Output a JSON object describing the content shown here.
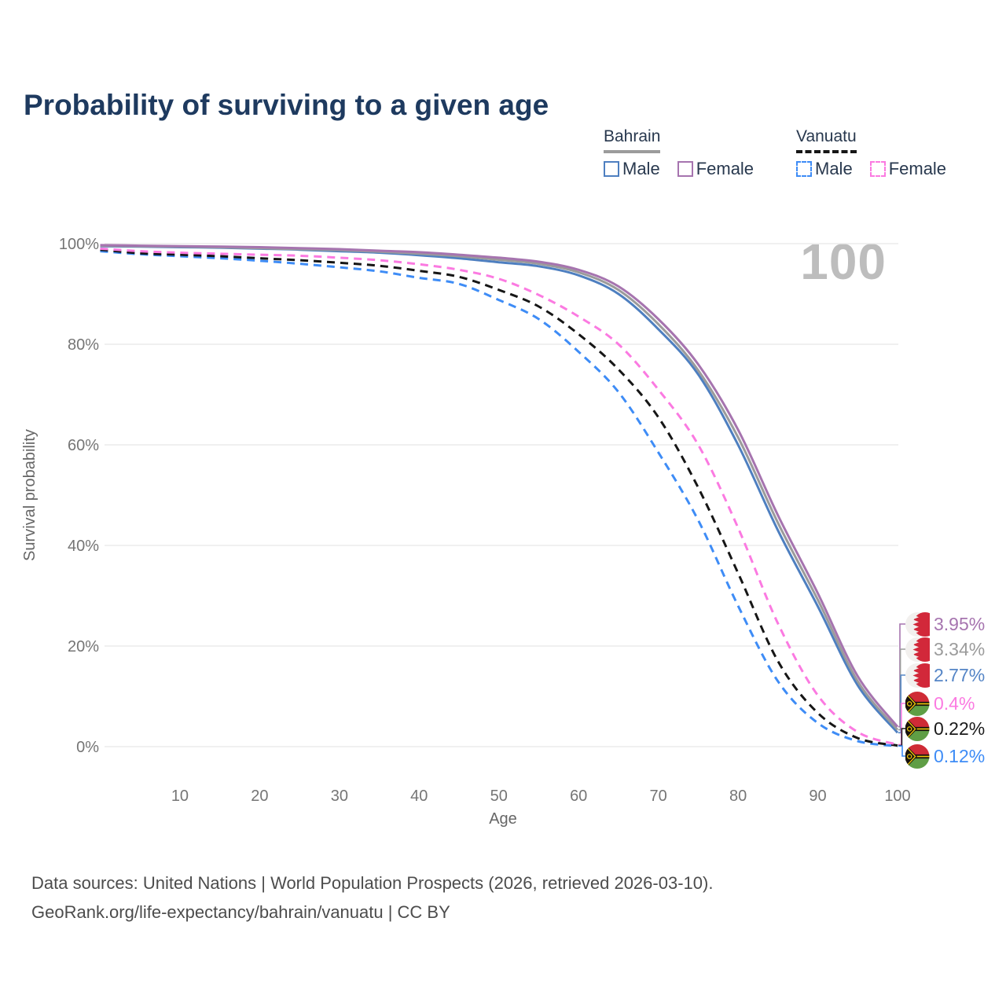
{
  "page_title": "Probability of surviving to a given age",
  "watermark_age": "100",
  "legend": {
    "groups": [
      {
        "name": "Bahrain",
        "underline_series": "bahrain_total",
        "items": [
          {
            "label": "Male",
            "series": "bahrain_male"
          },
          {
            "label": "Female",
            "series": "bahrain_female"
          }
        ]
      },
      {
        "name": "Vanuatu",
        "underline_series": "vanuatu_total",
        "items": [
          {
            "label": "Male",
            "series": "vanuatu_male"
          },
          {
            "label": "Female",
            "series": "vanuatu_female"
          }
        ]
      }
    ]
  },
  "chart_data": {
    "type": "line",
    "title": "Probability of surviving to a given age",
    "xlabel": "Age",
    "ylabel": "Survival probability",
    "xlim": [
      0,
      100
    ],
    "ylim": [
      0,
      100
    ],
    "grid": "horizontal",
    "x_ticks": [
      10,
      20,
      30,
      40,
      50,
      60,
      70,
      80,
      90,
      100
    ],
    "y_ticks": [
      {
        "value": 0,
        "label": "0%"
      },
      {
        "value": 20,
        "label": "20%"
      },
      {
        "value": 40,
        "label": "40%"
      },
      {
        "value": 60,
        "label": "60%"
      },
      {
        "value": 80,
        "label": "80%"
      },
      {
        "value": 100,
        "label": "100%"
      }
    ],
    "x": [
      0,
      5,
      10,
      15,
      20,
      25,
      30,
      35,
      40,
      45,
      50,
      55,
      60,
      65,
      70,
      75,
      80,
      85,
      90,
      95,
      100
    ],
    "series": [
      {
        "key": "vanuatu_male",
        "country": "Vanuatu",
        "sex": "Male",
        "color": "#3e8cf6",
        "line_style": "dashed",
        "values": [
          98.5,
          97.9,
          97.5,
          97.1,
          96.6,
          96.0,
          95.3,
          94.5,
          93.2,
          92.0,
          88.8,
          85.0,
          78.5,
          70.5,
          58.5,
          45.0,
          28.0,
          13.0,
          4.7,
          1.1,
          0.12
        ]
      },
      {
        "key": "vanuatu_total",
        "country": "Vanuatu",
        "sex": "Total",
        "color": "#161616",
        "line_style": "dashed",
        "values": [
          98.8,
          98.1,
          97.8,
          97.5,
          97.1,
          96.7,
          96.2,
          95.6,
          94.6,
          93.4,
          90.8,
          87.5,
          82.0,
          75.0,
          65.5,
          51.5,
          34.5,
          17.0,
          6.7,
          1.7,
          0.22
        ]
      },
      {
        "key": "vanuatu_female",
        "country": "Vanuatu",
        "sex": "Female",
        "color": "#fb7ae1",
        "line_style": "dashed",
        "values": [
          99.0,
          98.5,
          98.2,
          98.0,
          97.8,
          97.6,
          97.2,
          96.7,
          95.9,
          94.8,
          93.0,
          89.8,
          85.5,
          80.0,
          71.0,
          60.0,
          43.5,
          24.5,
          10.2,
          2.9,
          0.4
        ]
      },
      {
        "key": "bahrain_male",
        "country": "Bahrain",
        "sex": "Male",
        "color": "#4e7fc0",
        "line_style": "solid",
        "values": [
          99.5,
          99.4,
          99.3,
          99.2,
          99.0,
          98.8,
          98.5,
          98.2,
          97.7,
          97.1,
          96.3,
          95.5,
          93.7,
          90.0,
          83.0,
          74.0,
          60.0,
          43.0,
          27.9,
          12.2,
          2.77
        ]
      },
      {
        "key": "bahrain_total",
        "country": "Bahrain",
        "sex": "Total",
        "color": "#9b9b9b",
        "line_style": "solid",
        "values": [
          99.6,
          99.5,
          99.4,
          99.3,
          99.1,
          98.9,
          98.7,
          98.4,
          98.0,
          97.5,
          96.8,
          96.0,
          94.3,
          90.8,
          84.0,
          74.8,
          61.5,
          44.5,
          29.2,
          13.0,
          3.34
        ]
      },
      {
        "key": "bahrain_female",
        "country": "Bahrain",
        "sex": "Female",
        "color": "#a674af",
        "line_style": "solid",
        "values": [
          99.7,
          99.6,
          99.5,
          99.4,
          99.3,
          99.1,
          98.9,
          98.6,
          98.3,
          97.8,
          97.2,
          96.4,
          94.8,
          91.5,
          85.0,
          76.0,
          63.0,
          46.0,
          30.5,
          14.0,
          3.95
        ]
      }
    ],
    "end_labels": [
      {
        "series": "bahrain_female",
        "value_text": "3.95%",
        "value": 3.95,
        "color": "#a674af",
        "flag": "bahrain"
      },
      {
        "series": "bahrain_total",
        "value_text": "3.34%",
        "value": 3.34,
        "color": "#9b9b9b",
        "flag": "bahrain"
      },
      {
        "series": "bahrain_male",
        "value_text": "2.77%",
        "value": 2.77,
        "color": "#5585c6",
        "flag": "bahrain"
      },
      {
        "series": "vanuatu_female",
        "value_text": "0.4%",
        "value": 0.4,
        "color": "#fb7ae1",
        "flag": "vanuatu"
      },
      {
        "series": "vanuatu_total",
        "value_text": "0.22%",
        "value": 0.22,
        "color": "#1b1b1b",
        "flag": "vanuatu"
      },
      {
        "series": "vanuatu_male",
        "value_text": "0.12%",
        "value": 0.12,
        "color": "#3e8cf6",
        "flag": "vanuatu"
      }
    ]
  },
  "footer": {
    "line1": "Data sources: United Nations | World Population Prospects (2026, retrieved 2026-03-10).",
    "line2": "GeoRank.org/life-expectancy/bahrain/vanuatu | CC BY"
  }
}
